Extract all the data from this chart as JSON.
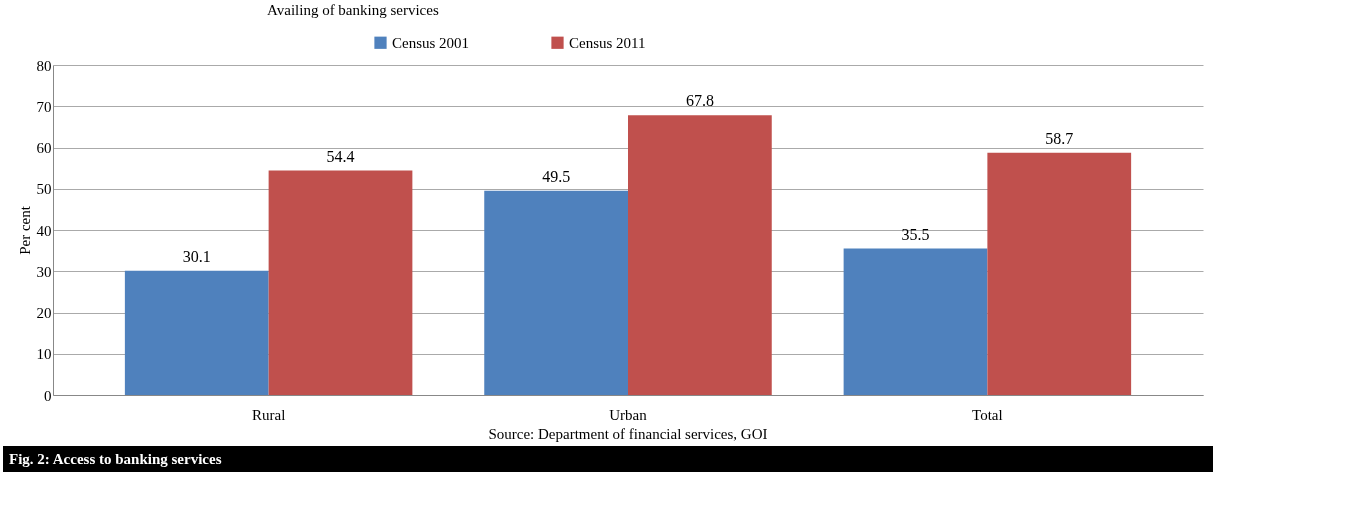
{
  "chart_data": {
    "type": "bar",
    "title": "Availing of banking services",
    "ylabel": "Per cent",
    "categories": [
      "Rural",
      "Urban",
      "Total"
    ],
    "series": [
      {
        "name": "Census 2001",
        "color": "#4f81bd",
        "values": [
          30.1,
          49.5,
          35.5
        ]
      },
      {
        "name": "Census 2011",
        "color": "#c0504d",
        "values": [
          54.4,
          67.8,
          58.7
        ]
      }
    ],
    "ylim": [
      0,
      80
    ],
    "yticks": [
      0,
      10,
      20,
      30,
      40,
      50,
      60,
      70,
      80
    ],
    "grid": "y",
    "legend": "top",
    "data_labels": true,
    "annotations": [
      "Source: Department of financial services, GOI",
      "Fig. 2: Access to banking services"
    ]
  }
}
